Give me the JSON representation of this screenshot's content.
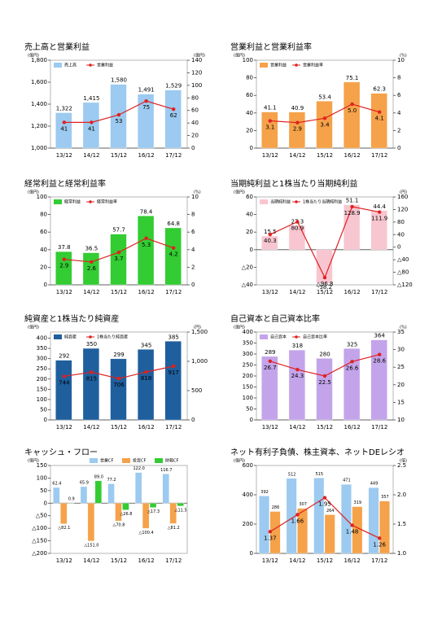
{
  "chart_data": [
    {
      "type": "bar",
      "title": "売上高と営業利益",
      "ylabel": "(億円)",
      "y2label": "(億円)",
      "legend": "upper left",
      "categories": [
        "13/12",
        "14/12",
        "15/12",
        "16/12",
        "17/12"
      ],
      "series": [
        {
          "name": "売上高",
          "color": "#9ccaf0",
          "values": [
            1322,
            1415,
            1580,
            1491,
            1529
          ],
          "value_labels": [
            "1,322",
            "1,415",
            "1,580",
            "1,491",
            "1,529"
          ]
        },
        {
          "name": "営業利益",
          "color": "#e02020",
          "axis": "y2",
          "values": [
            41,
            41,
            53,
            75,
            62
          ]
        }
      ],
      "ylim": [
        1000,
        1800
      ],
      "yticks": [
        {
          "value": 1000,
          "label": "1,000"
        },
        {
          "value": 1200,
          "label": "1,200"
        },
        {
          "value": 1400,
          "label": "1,400"
        },
        {
          "value": 1600,
          "label": "1,600"
        },
        {
          "value": 1800,
          "label": "1,800"
        }
      ],
      "y2lim": [
        0,
        140
      ],
      "y2ticks": [
        0,
        20,
        40,
        60,
        80,
        100,
        120,
        140
      ]
    },
    {
      "type": "bar",
      "title": "営業利益と営業利益率",
      "ylabel": "(億円)",
      "y2label": "(%)",
      "legend": "upper left",
      "categories": [
        "13/12",
        "14/12",
        "15/12",
        "16/12",
        "17/12"
      ],
      "series": [
        {
          "name": "営業利益",
          "color": "#f5a24a",
          "values": [
            41.1,
            40.9,
            53.4,
            75.1,
            62.3
          ]
        },
        {
          "name": "営業利益率",
          "color": "#e02020",
          "axis": "y2",
          "values": [
            3.1,
            2.9,
            3.4,
            5.0,
            4.1
          ],
          "value_labels": [
            "3.1",
            "2.9",
            "3.4",
            "5.0",
            "4.1"
          ]
        }
      ],
      "ylim": [
        0,
        100
      ],
      "yticks": [
        0,
        20,
        40,
        60,
        80,
        100
      ],
      "y2lim": [
        0,
        10
      ],
      "y2ticks": [
        0,
        2,
        4,
        6,
        8,
        10
      ]
    },
    {
      "type": "bar",
      "title": "経常利益と経常利益率",
      "ylabel": "(億円)",
      "y2label": "(%)",
      "legend": "upper left",
      "categories": [
        "13/12",
        "14/12",
        "15/12",
        "16/12",
        "17/12"
      ],
      "series": [
        {
          "name": "経常利益",
          "color": "#33cc33",
          "values": [
            37.8,
            36.5,
            57.7,
            78.4,
            64.8
          ]
        },
        {
          "name": "経常利益率",
          "color": "#e02020",
          "axis": "y2",
          "values": [
            2.9,
            2.6,
            3.7,
            5.3,
            4.2
          ]
        }
      ],
      "ylim": [
        0,
        100
      ],
      "yticks": [
        0,
        20,
        40,
        60,
        80,
        100
      ],
      "y2lim": [
        0,
        10
      ],
      "y2ticks": [
        0,
        2,
        4,
        6,
        8,
        10
      ]
    },
    {
      "type": "bar",
      "title": "当期純利益と1株当たり当期純利益",
      "ylabel": "(億円)",
      "y2label": "(円)",
      "legend": "upper left",
      "categories": [
        "13/12",
        "14/12",
        "15/12",
        "16/12",
        "17/12"
      ],
      "series": [
        {
          "name": "当期純利益",
          "color": "#f8c6d0",
          "values": [
            15.5,
            27.3,
            -38.2,
            51.1,
            44.4
          ]
        },
        {
          "name": "1株当たり当期純利益",
          "color": "#e02020",
          "axis": "y2",
          "values": [
            40.3,
            80.9,
            -96.8,
            128.9,
            111.9
          ],
          "value_labels": [
            "40.3",
            "80.9",
            "△96.8",
            "128.9",
            "111.9"
          ]
        }
      ],
      "ylim": [
        -40,
        60
      ],
      "yticks": [
        {
          "value": -40,
          "label": "△40"
        },
        {
          "value": -20,
          "label": "△20"
        },
        0,
        20,
        40,
        60
      ],
      "y2lim": [
        -120,
        160
      ],
      "y2ticks": [
        {
          "value": -120,
          "label": "△120"
        },
        {
          "value": -80,
          "label": "△80"
        },
        {
          "value": -40,
          "label": "△40"
        },
        0,
        40,
        80,
        120,
        160
      ]
    },
    {
      "type": "bar",
      "title": "純資産と1株当たり純資産",
      "ylabel": "(億円)",
      "y2label": "(円)",
      "legend": "upper left",
      "categories": [
        "13/12",
        "14/12",
        "15/12",
        "16/12",
        "17/12"
      ],
      "series": [
        {
          "name": "純資産",
          "color": "#1f5f9e",
          "values": [
            292,
            350,
            299,
            345,
            385
          ]
        },
        {
          "name": "1株当たり純資産",
          "color": "#e02020",
          "axis": "y2",
          "values": [
            744,
            815,
            706,
            818,
            917
          ]
        }
      ],
      "ylim": [
        0,
        430
      ],
      "yticks": [
        0,
        50,
        100,
        150,
        200,
        250,
        300,
        350,
        400
      ],
      "y2lim": [
        0,
        1500
      ],
      "y2ticks": [
        0,
        500,
        {
          "value": 1000,
          "label": "1,000"
        },
        {
          "value": 1500,
          "label": "1,500"
        }
      ]
    },
    {
      "type": "bar",
      "title": "自己資本と自己資本比率",
      "ylabel": "(億円)",
      "y2label": "(%)",
      "legend": "upper left",
      "categories": [
        "13/12",
        "14/12",
        "15/12",
        "16/12",
        "17/12"
      ],
      "series": [
        {
          "name": "自己資本",
          "color": "#c3a4ea",
          "values": [
            289,
            318,
            280,
            325,
            364
          ]
        },
        {
          "name": "自己資本比率",
          "color": "#e02020",
          "axis": "y2",
          "values": [
            26.7,
            24.3,
            22.5,
            26.6,
            28.6
          ]
        }
      ],
      "ylim": [
        0,
        400
      ],
      "yticks": [
        0,
        50,
        100,
        150,
        200,
        250,
        300,
        350,
        400
      ],
      "y2lim": [
        10,
        35
      ],
      "y2ticks": [
        10,
        15,
        20,
        25,
        30,
        35
      ]
    },
    {
      "type": "bar",
      "title": "キャッシュ・フロー",
      "ylabel": "(億円)",
      "legend": "top right",
      "categories": [
        "13/12",
        "14/12",
        "15/12",
        "16/12",
        "17/12"
      ],
      "series": [
        {
          "name": "営業CF",
          "color": "#9ccaf0",
          "values": [
            62.4,
            65.9,
            77.2,
            122.0,
            116.7
          ],
          "value_labels": [
            "62.4",
            "65.9",
            "77.2",
            "122.0",
            "116.7"
          ]
        },
        {
          "name": "投資CF",
          "color": "#f5a24a",
          "values": [
            -82.1,
            -151.0,
            -70.8,
            -100.4,
            -81.2
          ],
          "value_labels": [
            "△82.1",
            "△151.0",
            "△70.8",
            "△100.4",
            "△81.2"
          ]
        },
        {
          "name": "財務CF",
          "color": "#33cc33",
          "values": [
            0.9,
            89.0,
            -26.8,
            -17.3,
            -11.5
          ],
          "value_labels": [
            "0.9",
            "89.0",
            "△26.8",
            "△17.3",
            "△11.5"
          ]
        }
      ],
      "ylim": [
        -200,
        150
      ],
      "yticks": [
        {
          "value": -200,
          "label": "△200"
        },
        {
          "value": -150,
          "label": "△150"
        },
        {
          "value": -100,
          "label": "△100"
        },
        {
          "value": -50,
          "label": "△50"
        },
        0,
        50,
        100,
        150
      ]
    },
    {
      "type": "bar",
      "title": "ネット有利子負債、株主資本、ネットDEレシオ",
      "ylabel": "(億円)",
      "y2label": "(倍)",
      "categories": [
        "13/12",
        "14/12",
        "15/12",
        "16/12",
        "17/12"
      ],
      "series": [
        {
          "color": "#9ccaf0",
          "values": [
            392,
            512,
            515,
            471,
            449
          ]
        },
        {
          "color": "#f5a24a",
          "values": [
            286,
            307,
            264,
            319,
            357
          ]
        },
        {
          "color": "#e02020",
          "axis": "y2",
          "values": [
            1.37,
            1.66,
            1.95,
            1.48,
            1.26
          ]
        }
      ],
      "ylim": [
        0,
        600
      ],
      "yticks": [
        0,
        200,
        400,
        600
      ],
      "y2lim": [
        1.0,
        2.5
      ],
      "y2ticks": [
        {
          "value": 1.0,
          "label": "1.0"
        },
        {
          "value": 1.5,
          "label": "1.5"
        },
        {
          "value": 2.0,
          "label": "2.0"
        },
        {
          "value": 2.5,
          "label": "2.5"
        }
      ]
    }
  ]
}
